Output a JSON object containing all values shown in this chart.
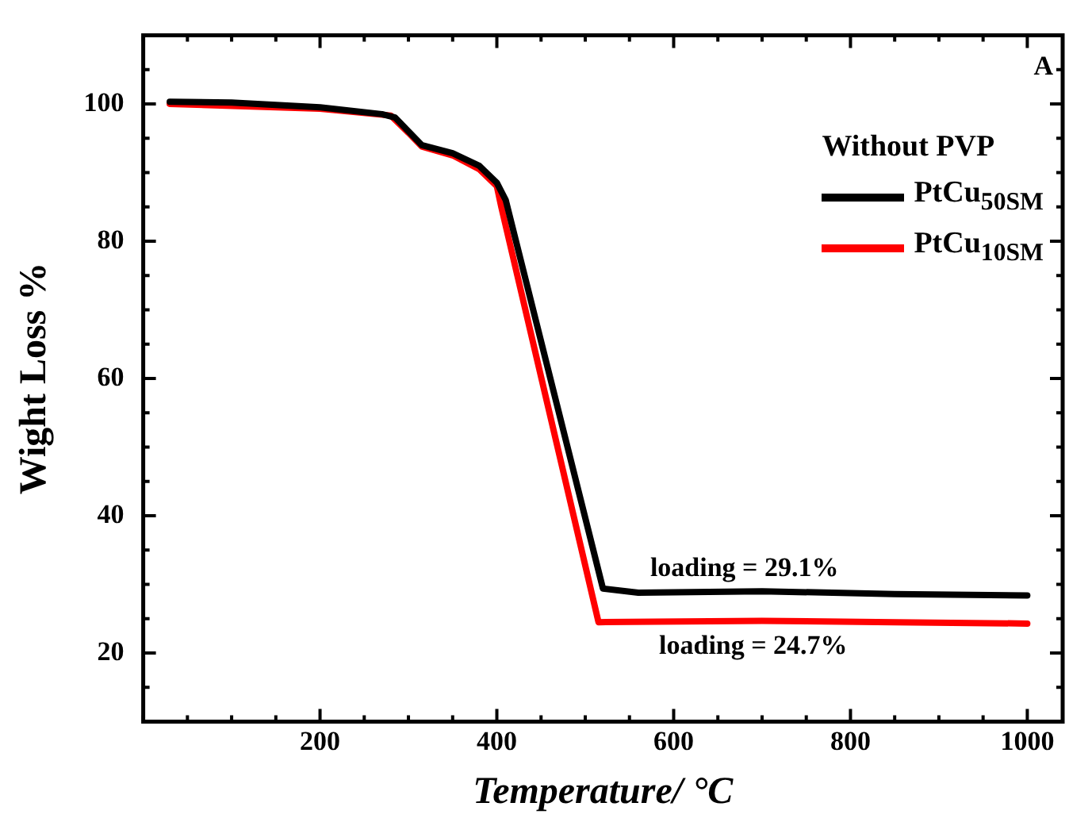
{
  "chart_data": {
    "type": "line",
    "xlabel": "Temperature/ °C",
    "ylabel": "Wight Loss %",
    "legend_title": "Without PVP",
    "legend": "top right",
    "grid": false,
    "marker": "none",
    "line_style": "solid",
    "xlim": [
      0,
      1040
    ],
    "xticks": [
      200,
      400,
      600,
      800,
      1000
    ],
    "ylim": [
      10,
      110
    ],
    "yticks": [
      20,
      40,
      60,
      80,
      100
    ],
    "annotations": [
      "A",
      {
        "text": "loading = 29.1%",
        "x": 680,
        "y": 28.9
      },
      {
        "text": "loading = 24.7%",
        "x": 690,
        "y": 24.7
      }
    ],
    "series": [
      {
        "name": "PtCu$_{50SM}$",
        "color": "#000000",
        "x": [
          30,
          100,
          200,
          270,
          285,
          300,
          315,
          350,
          380,
          400,
          410,
          520,
          560,
          700,
          850,
          1000
        ],
        "values": [
          100.3,
          100.2,
          99.5,
          98.5,
          98,
          96,
          94,
          92.8,
          91,
          88.5,
          86,
          29.4,
          28.8,
          29,
          28.6,
          28.4
        ]
      },
      {
        "name": "PtCu$_{10SM}$",
        "color": "#ff0000",
        "x": [
          30,
          200,
          280,
          300,
          315,
          350,
          380,
          400,
          405,
          515,
          700,
          850,
          1000
        ],
        "values": [
          100,
          99.3,
          98.3,
          95.8,
          93.8,
          92.5,
          90.5,
          88,
          85,
          24.5,
          24.7,
          24.5,
          24.3
        ]
      }
    ]
  }
}
